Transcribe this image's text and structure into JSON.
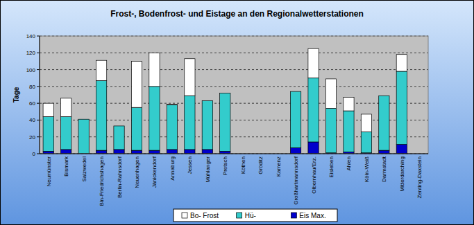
{
  "chart_data": {
    "type": "bar",
    "title": "Frost-, Bodenfrost- und Eistage an den Regionalwetterstationen",
    "y_label": "Tage",
    "categories": [
      "Neumünster",
      "Bismark",
      "Salzwedel",
      "Bln-Friedrichshagen",
      "Berlin-Rahnsdorf",
      "Neuenhagen",
      "Jänickendorf",
      "Annaburg",
      "Jessen",
      "Mühlanger",
      "Pretsch",
      "Köthen",
      "Gröditz",
      "Kamenz",
      "Großhartmannsdorf",
      "Olbernhau/Erz.",
      "Eisleben",
      "Ahlen",
      "Köln-Weiß",
      "Darmstadt",
      "Mitterdarching",
      "Zenting-Daxstein"
    ],
    "series": [
      {
        "name": "Eis Max.",
        "color": "#0000cc",
        "values": [
          3,
          5,
          0,
          4,
          5,
          4,
          4,
          5,
          5,
          5,
          3,
          0,
          0,
          0,
          7,
          14,
          1,
          2,
          1,
          4,
          11,
          0
        ]
      },
      {
        "name": "Hü-",
        "color": "#33cccc",
        "values": [
          41,
          39,
          41,
          83,
          28,
          51,
          76,
          53,
          64,
          58,
          69,
          0,
          0,
          0,
          67,
          76,
          53,
          49,
          25,
          65,
          87,
          0
        ]
      },
      {
        "name": "Bo- Frost",
        "color": "#ffffff",
        "values": [
          16,
          22,
          0,
          24,
          0,
          55,
          40,
          1,
          44,
          0,
          0,
          0,
          0,
          0,
          0,
          35,
          35,
          16,
          21,
          0,
          20,
          0
        ]
      }
    ],
    "stacked": true,
    "grid": true,
    "legend": "bottom",
    "ylim": [
      0,
      140
    ],
    "yticks": [
      0,
      20,
      40,
      60,
      80,
      100,
      120,
      140
    ]
  }
}
